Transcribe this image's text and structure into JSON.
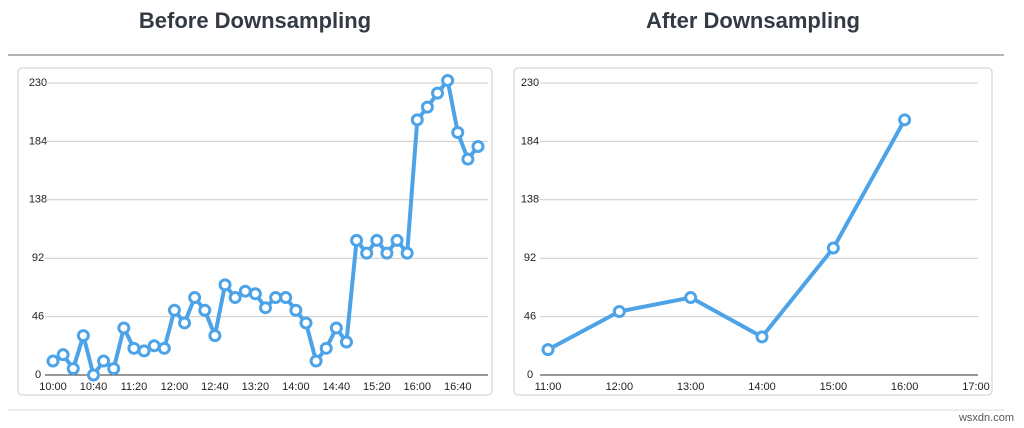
{
  "chart_data": [
    {
      "type": "line",
      "title": "Before Downsampling",
      "categories": [
        "10:00",
        null,
        null,
        null,
        "10:40",
        null,
        null,
        null,
        "11:20",
        null,
        null,
        null,
        "12:00",
        null,
        null,
        null,
        "12:40",
        null,
        null,
        null,
        "13:20",
        null,
        null,
        null,
        "14:00",
        null,
        null,
        null,
        "14:40",
        null,
        null,
        null,
        "15:20",
        null,
        null,
        null,
        "16:00",
        null,
        null,
        null,
        "16:40",
        null,
        null
      ],
      "series": [
        {
          "name": null,
          "color": "#4da3e8",
          "values": [
            11,
            16,
            5,
            31,
            0,
            11,
            5,
            37,
            21,
            19,
            23,
            21,
            51,
            41,
            61,
            51,
            31,
            71,
            61,
            66,
            64,
            53,
            61,
            61,
            51,
            41,
            11,
            21,
            37,
            26,
            106,
            96,
            106,
            96,
            106,
            96,
            201,
            211,
            222,
            232,
            191,
            170,
            180
          ]
        }
      ],
      "ylim": [
        0,
        230
      ],
      "yticks": [
        0,
        46,
        92,
        138,
        184,
        230
      ],
      "grid": true
    },
    {
      "type": "line",
      "title": "After Downsampling",
      "categories": [
        "11:00",
        "12:00",
        "13:00",
        "14:00",
        "15:00",
        "16:00",
        "17:00"
      ],
      "series": [
        {
          "name": null,
          "color": "#4da3e8",
          "values": [
            20,
            50,
            61,
            30,
            100,
            201,
            null
          ]
        }
      ],
      "ylim": [
        0,
        230
      ],
      "yticks": [
        0,
        46,
        92,
        138,
        184,
        230
      ],
      "grid": true
    }
  ],
  "watermark": "wsxdn.com"
}
